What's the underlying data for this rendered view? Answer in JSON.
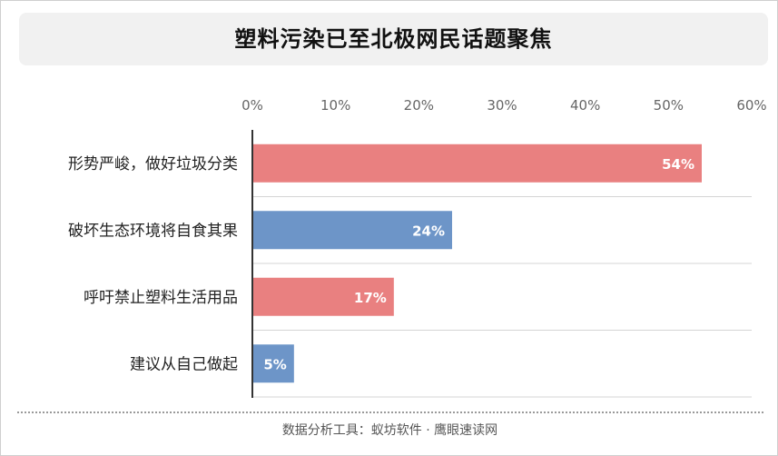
{
  "title": "塑料污染已至北极网民话题聚焦",
  "footer": "数据分析工具：蚁坊软件 · 鹰眼速读网",
  "colors": {
    "bar_red": "#e98080",
    "bar_blue": "#6d95c8",
    "axis": "#333333",
    "grid": "#d4d4d4",
    "tick_text": "#666666",
    "label_text": "#222222",
    "value_text": "#ffffff"
  },
  "chart_data": {
    "type": "bar",
    "orientation": "horizontal",
    "x_axis_position": "top",
    "categories": [
      "形势严峻，做好垃圾分类",
      "破坏生态环境将自食其果",
      "呼吁禁止塑料生活用品",
      "建议从自己做起"
    ],
    "values": [
      54,
      24,
      17,
      5
    ],
    "data_labels": [
      "54%",
      "24%",
      "17%",
      "5%"
    ],
    "xlim": [
      0,
      60
    ],
    "ticks": [
      0,
      10,
      20,
      30,
      40,
      50,
      60
    ],
    "tick_labels": [
      "0%",
      "10%",
      "20%",
      "30%",
      "40%",
      "50%",
      "60%"
    ],
    "bar_colors": [
      "#e98080",
      "#6d95c8",
      "#e98080",
      "#6d95c8"
    ],
    "grid": true,
    "legend": "none",
    "xlabel": "",
    "ylabel": ""
  }
}
